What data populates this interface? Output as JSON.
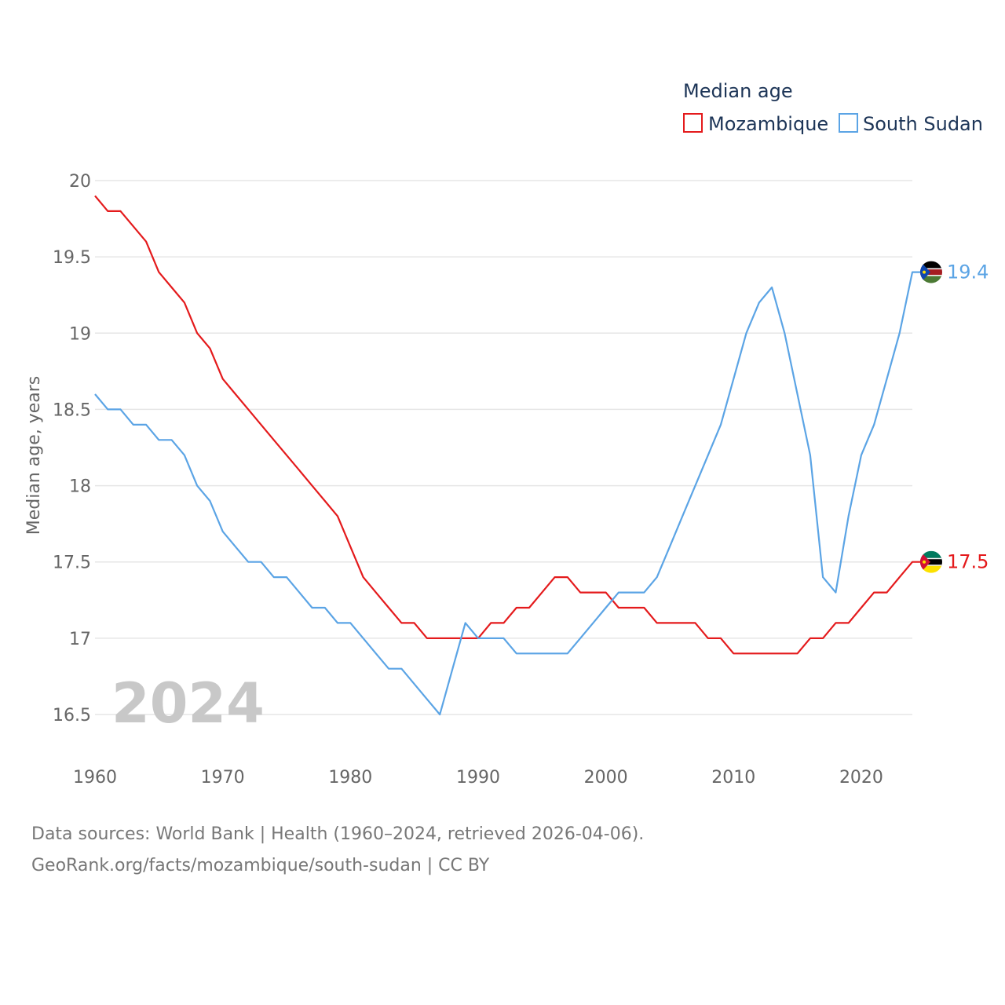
{
  "chart_data": {
    "type": "line",
    "title": "",
    "legend_title": "Median age",
    "ylabel": "Median age, years",
    "xlabel": "",
    "xlim": [
      1960,
      2024
    ],
    "ylim": [
      16.5,
      20
    ],
    "year_label": "2024",
    "x_ticks": [
      1960,
      1970,
      1980,
      1990,
      2000,
      2010,
      2020
    ],
    "y_ticks": [
      "16.5",
      "17",
      "17.5",
      "18",
      "18.5",
      "19",
      "19.5",
      "20"
    ],
    "x": [
      1960,
      1961,
      1962,
      1963,
      1964,
      1965,
      1966,
      1967,
      1968,
      1969,
      1970,
      1971,
      1972,
      1973,
      1974,
      1975,
      1976,
      1977,
      1978,
      1979,
      1980,
      1981,
      1982,
      1983,
      1984,
      1985,
      1986,
      1987,
      1988,
      1989,
      1990,
      1991,
      1992,
      1993,
      1994,
      1995,
      1996,
      1997,
      1998,
      1999,
      2000,
      2001,
      2002,
      2003,
      2004,
      2005,
      2006,
      2007,
      2008,
      2009,
      2010,
      2011,
      2012,
      2013,
      2014,
      2015,
      2016,
      2017,
      2018,
      2019,
      2020,
      2021,
      2022,
      2023,
      2024
    ],
    "series": [
      {
        "name": "Mozambique",
        "color": "#e41a1c",
        "end_label": "17.5",
        "values": [
          19.9,
          19.8,
          19.8,
          19.7,
          19.6,
          19.4,
          19.3,
          19.2,
          19.0,
          18.9,
          18.7,
          18.6,
          18.5,
          18.4,
          18.3,
          18.2,
          18.1,
          18.0,
          17.9,
          17.8,
          17.6,
          17.4,
          17.3,
          17.2,
          17.1,
          17.1,
          17.0,
          17.0,
          17.0,
          17.0,
          17.0,
          17.1,
          17.1,
          17.2,
          17.2,
          17.3,
          17.4,
          17.4,
          17.3,
          17.3,
          17.3,
          17.2,
          17.2,
          17.2,
          17.1,
          17.1,
          17.1,
          17.1,
          17.0,
          17.0,
          16.9,
          16.9,
          16.9,
          16.9,
          16.9,
          16.9,
          17.0,
          17.0,
          17.1,
          17.1,
          17.2,
          17.3,
          17.3,
          17.4,
          17.5
        ]
      },
      {
        "name": "South Sudan",
        "color": "#5ba4e5",
        "end_label": "19.4",
        "values": [
          18.6,
          18.5,
          18.5,
          18.4,
          18.4,
          18.3,
          18.3,
          18.2,
          18.0,
          17.9,
          17.7,
          17.6,
          17.5,
          17.5,
          17.4,
          17.4,
          17.3,
          17.2,
          17.2,
          17.1,
          17.1,
          17.0,
          16.9,
          16.8,
          16.8,
          16.7,
          16.6,
          16.5,
          16.8,
          17.1,
          17.0,
          17.0,
          17.0,
          16.9,
          16.9,
          16.9,
          16.9,
          16.9,
          17.0,
          17.1,
          17.2,
          17.3,
          17.3,
          17.3,
          17.4,
          17.6,
          17.8,
          18.0,
          18.2,
          18.4,
          18.7,
          19.0,
          19.2,
          19.3,
          19.0,
          18.6,
          18.2,
          17.4,
          17.3,
          17.8,
          18.2,
          18.4,
          18.7,
          19.0,
          19.4
        ]
      }
    ]
  },
  "source": {
    "line1": "Data sources: World Bank | Health (1960–2024, retrieved 2026-04-06).",
    "line2": "GeoRank.org/facts/mozambique/south-sudan | CC BY"
  },
  "colors": {
    "grid": "#e6e6e6",
    "tick_text": "#666666",
    "legend_text": "#1d3557"
  }
}
